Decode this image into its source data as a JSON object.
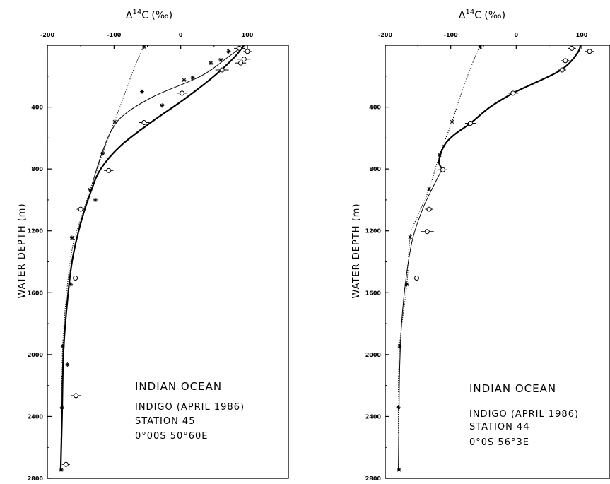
{
  "chart_data": [
    {
      "type": "scatter",
      "panel": "left",
      "xlabel": "Δ¹⁴C (‰)",
      "xlabel_parts": {
        "pre": "Δ",
        "sup": "14",
        "post": "C (‰)"
      },
      "ylabel": "WATER DEPTH (m)",
      "xlim": [
        -200,
        120
      ],
      "ylim": [
        2800,
        0
      ],
      "xticks": [
        "-200",
        "-100",
        "0",
        "100"
      ],
      "yticks": [
        "400",
        "800",
        "1200",
        "1600",
        "2000",
        "2400",
        "2800"
      ],
      "annotation": [
        "INDIAN OCEAN",
        "INDIGO (APRIL 1986)",
        "STATION 45",
        "0°00S 50°60E"
      ],
      "series": [
        {
          "marker": "circle",
          "points": [
            {
              "x": 88,
              "y": 20,
              "err": 8
            },
            {
              "x": 100,
              "y": 40,
              "err": 6
            },
            {
              "x": 95,
              "y": 90,
              "err": 10
            },
            {
              "x": 90,
              "y": 115,
              "err": 8
            },
            {
              "x": 62,
              "y": 160,
              "err": 10
            },
            {
              "x": 2,
              "y": 310,
              "err": 8
            },
            {
              "x": -55,
              "y": 500,
              "err": 8
            },
            {
              "x": -108,
              "y": 810,
              "err": 7
            },
            {
              "x": -150,
              "y": 1060,
              "err": 6
            },
            {
              "x": -158,
              "y": 1505,
              "err": 15
            },
            {
              "x": -157,
              "y": 2265,
              "err": 8
            },
            {
              "x": -172,
              "y": 2710,
              "err": 6
            }
          ]
        },
        {
          "marker": "star",
          "points": [
            {
              "x": -55,
              "y": 10
            },
            {
              "x": 72,
              "y": 40
            },
            {
              "x": 60,
              "y": 95
            },
            {
              "x": 45,
              "y": 115
            },
            {
              "x": 18,
              "y": 210
            },
            {
              "x": 5,
              "y": 225
            },
            {
              "x": -58,
              "y": 300
            },
            {
              "x": -28,
              "y": 390
            },
            {
              "x": -99,
              "y": 495
            },
            {
              "x": -117,
              "y": 700
            },
            {
              "x": -136,
              "y": 935
            },
            {
              "x": -128,
              "y": 1000
            },
            {
              "x": -163,
              "y": 1245
            },
            {
              "x": -165,
              "y": 1545
            },
            {
              "x": -177,
              "y": 1945
            },
            {
              "x": -170,
              "y": 2065
            },
            {
              "x": -178,
              "y": 2340
            },
            {
              "x": -179,
              "y": 2745
            }
          ]
        }
      ],
      "curves": [
        {
          "style": "thick-solid",
          "points": [
            [
              95,
              0
            ],
            [
              80,
              80
            ],
            [
              50,
              200
            ],
            [
              5,
              350
            ],
            [
              -45,
              500
            ],
            [
              -90,
              650
            ],
            [
              -120,
              800
            ],
            [
              -135,
              950
            ],
            [
              -150,
              1150
            ],
            [
              -163,
              1400
            ],
            [
              -171,
              1700
            ],
            [
              -176,
              2000
            ],
            [
              -178,
              2400
            ],
            [
              -180,
              2750
            ]
          ]
        },
        {
          "style": "thin-solid",
          "points": [
            [
              95,
              0
            ],
            [
              70,
              80
            ],
            [
              30,
              200
            ],
            [
              -40,
              330
            ],
            [
              -85,
              450
            ],
            [
              -105,
              560
            ],
            [
              -120,
              720
            ],
            [
              -133,
              900
            ]
          ]
        },
        {
          "style": "dotted",
          "points": [
            [
              -55,
              0
            ],
            [
              -70,
              150
            ],
            [
              -87,
              350
            ],
            [
              -100,
              500
            ],
            [
              -117,
              700
            ],
            [
              -133,
              900
            ],
            [
              -148,
              1100
            ],
            [
              -162,
              1300
            ],
            [
              -171,
              1600
            ],
            [
              -177,
              1950
            ],
            [
              -179,
              2400
            ],
            [
              -180,
              2750
            ]
          ]
        }
      ]
    },
    {
      "type": "scatter",
      "panel": "right",
      "xlabel": "Δ¹⁴C (‰)",
      "xlabel_parts": {
        "pre": "Δ",
        "sup": "14",
        "post": "C (‰)"
      },
      "ylabel": "WATER DEPTH (m)",
      "xlim": [
        -200,
        120
      ],
      "ylim": [
        2800,
        0
      ],
      "xticks": [
        "-200",
        "-100",
        "0",
        "100"
      ],
      "yticks": [
        "400",
        "800",
        "1200",
        "1600",
        "2000",
        "2400",
        "2800"
      ],
      "annotation": [
        "INDIAN OCEAN",
        "INDIGO (APRIL 1986)",
        "STATION 44",
        "0°0S 56°3E"
      ],
      "series": [
        {
          "marker": "circle",
          "points": [
            {
              "x": 85,
              "y": 20,
              "err": 6
            },
            {
              "x": 112,
              "y": 40,
              "err": 7
            },
            {
              "x": 75,
              "y": 100,
              "err": 6
            },
            {
              "x": 70,
              "y": 160,
              "err": 6
            },
            {
              "x": -5,
              "y": 310,
              "err": 8
            },
            {
              "x": -70,
              "y": 505,
              "err": 8
            },
            {
              "x": -112,
              "y": 805,
              "err": 7
            },
            {
              "x": -133,
              "y": 1060,
              "err": 6
            },
            {
              "x": -136,
              "y": 1205,
              "err": 10
            },
            {
              "x": -152,
              "y": 1505,
              "err": 9
            }
          ]
        },
        {
          "marker": "star",
          "points": [
            {
              "x": -55,
              "y": 10
            },
            {
              "x": -98,
              "y": 495
            },
            {
              "x": -117,
              "y": 710
            },
            {
              "x": -133,
              "y": 930
            },
            {
              "x": -162,
              "y": 1240
            },
            {
              "x": -167,
              "y": 1545
            },
            {
              "x": -178,
              "y": 1945
            },
            {
              "x": -180,
              "y": 2340
            },
            {
              "x": -179,
              "y": 2745
            }
          ]
        }
      ],
      "curves": [
        {
          "style": "thick-solid",
          "points": [
            [
              98,
              0
            ],
            [
              95,
              40
            ],
            [
              80,
              120
            ],
            [
              60,
              180
            ],
            [
              20,
              260
            ],
            [
              -5,
              310
            ],
            [
              -40,
              400
            ],
            [
              -70,
              505
            ],
            [
              -95,
              580
            ],
            [
              -110,
              650
            ],
            [
              -118,
              750
            ],
            [
              -113,
              800
            ]
          ]
        },
        {
          "style": "thin-solid",
          "points": [
            [
              -113,
              800
            ],
            [
              -125,
              900
            ],
            [
              -142,
              1050
            ],
            [
              -158,
              1250
            ],
            [
              -168,
              1500
            ],
            [
              -175,
              1800
            ],
            [
              -178,
              2100
            ],
            [
              -179,
              2400
            ],
            [
              -180,
              2750
            ]
          ]
        },
        {
          "style": "dotted",
          "points": [
            [
              -55,
              0
            ],
            [
              -70,
              150
            ],
            [
              -87,
              350
            ],
            [
              -98,
              495
            ],
            [
              -117,
              710
            ],
            [
              -133,
              930
            ],
            [
              -150,
              1100
            ],
            [
              -162,
              1240
            ],
            [
              -167,
              1545
            ],
            [
              -178,
              1945
            ],
            [
              -180,
              2340
            ],
            [
              -179,
              2745
            ]
          ]
        }
      ]
    }
  ]
}
